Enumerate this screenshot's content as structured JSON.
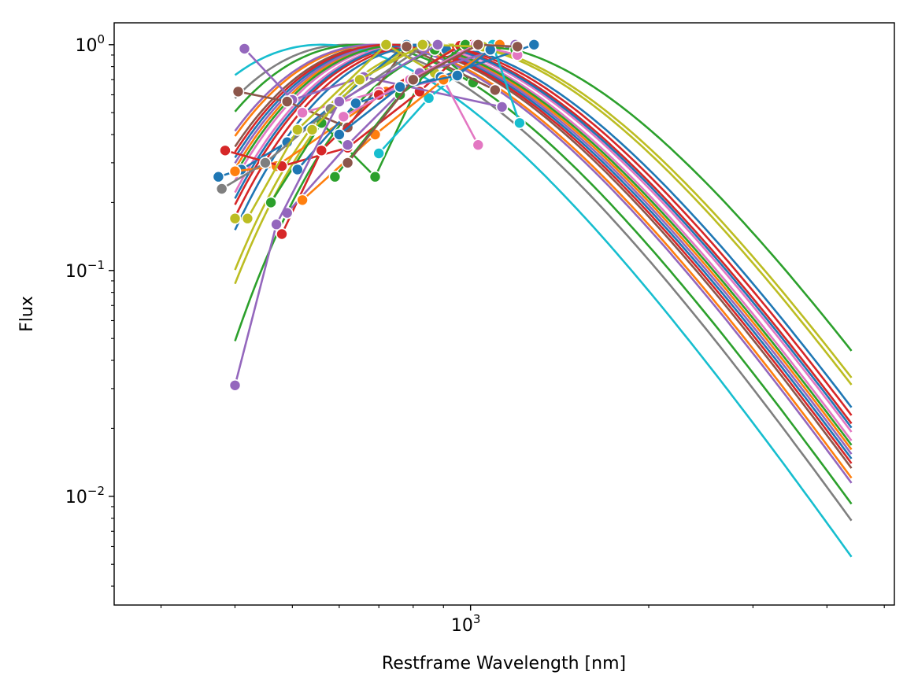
{
  "chart_data": {
    "type": "line",
    "xlabel": "Restframe Wavelength [nm]",
    "ylabel": "Flux",
    "x_scale": "log",
    "y_scale": "log",
    "xlim": [
      250,
      5200
    ],
    "ylim": [
      0.0033,
      1.25
    ],
    "grid": false,
    "legend": "none",
    "x_ticks": [
      {
        "value": 1000,
        "base": "10",
        "exp": "3"
      }
    ],
    "y_ticks": [
      {
        "value": 0.01,
        "base": "10",
        "exp": "−2"
      },
      {
        "value": 0.1,
        "base": "10",
        "exp": "−1"
      },
      {
        "value": 1,
        "base": "10",
        "exp": "0"
      }
    ],
    "palette": [
      "#1f77b4",
      "#ff7f0e",
      "#2ca02c",
      "#d62728",
      "#9467bd",
      "#8c564b",
      "#e377c2",
      "#7f7f7f",
      "#bcbd22",
      "#17becf"
    ],
    "curve_x_range": [
      400,
      4400
    ],
    "curves": [
      {
        "peak_nm": 740,
        "color": "#1f77b4"
      },
      {
        "peak_nm": 760,
        "color": "#ff7f0e"
      },
      {
        "peak_nm": 1020,
        "color": "#2ca02c"
      },
      {
        "peak_nm": 820,
        "color": "#d62728"
      },
      {
        "peak_nm": 750,
        "color": "#9467bd"
      },
      {
        "peak_nm": 720,
        "color": "#8c564b"
      },
      {
        "peak_nm": 780,
        "color": "#e377c2"
      },
      {
        "peak_nm": 620,
        "color": "#7f7f7f"
      },
      {
        "peak_nm": 920,
        "color": "#bcbd22"
      },
      {
        "peak_nm": 560,
        "color": "#17becf"
      },
      {
        "peak_nm": 860,
        "color": "#1f77b4"
      },
      {
        "peak_nm": 700,
        "color": "#ff7f0e"
      },
      {
        "peak_nm": 650,
        "color": "#2ca02c"
      },
      {
        "peak_nm": 840,
        "color": "#d62728"
      },
      {
        "peak_nm": 690,
        "color": "#9467bd"
      },
      {
        "peak_nm": 800,
        "color": "#e377c2"
      },
      {
        "peak_nm": 940,
        "color": "#bcbd22"
      },
      {
        "peak_nm": 770,
        "color": "#2ca02c"
      },
      {
        "peak_nm": 810,
        "color": "#1f77b4"
      },
      {
        "peak_nm": 730,
        "color": "#d62728"
      }
    ],
    "photometry_series": [
      {
        "color": "#1f77b4",
        "points": [
          [
            375,
            0.26
          ],
          [
            410,
            0.28
          ],
          [
            490,
            0.37
          ],
          [
            780,
            1.0
          ],
          [
            910,
            0.95
          ]
        ]
      },
      {
        "color": "#ff7f0e",
        "points": [
          [
            400,
            0.275
          ],
          [
            470,
            0.29
          ],
          [
            720,
            0.62
          ],
          [
            960,
            1.0
          ]
        ]
      },
      {
        "color": "#2ca02c",
        "points": [
          [
            460,
            0.2
          ],
          [
            560,
            0.45
          ],
          [
            690,
            0.26
          ],
          [
            870,
            0.95
          ],
          [
            1010,
            0.68
          ]
        ]
      },
      {
        "color": "#d62728",
        "points": [
          [
            385,
            0.34
          ],
          [
            480,
            0.29
          ],
          [
            620,
            0.35
          ],
          [
            820,
            0.62
          ],
          [
            1005,
            1.0
          ]
        ]
      },
      {
        "color": "#9467bd",
        "points": [
          [
            415,
            0.96
          ],
          [
            500,
            0.57
          ],
          [
            660,
            0.72
          ],
          [
            1130,
            0.53
          ]
        ]
      },
      {
        "color": "#8c564b",
        "points": [
          [
            405,
            0.62
          ],
          [
            490,
            0.56
          ],
          [
            620,
            0.43
          ],
          [
            780,
            0.98
          ],
          [
            1100,
            0.63
          ]
        ]
      },
      {
        "color": "#e377c2",
        "points": [
          [
            520,
            0.5
          ],
          [
            700,
            0.62
          ],
          [
            900,
            0.7
          ],
          [
            1030,
            0.36
          ]
        ]
      },
      {
        "color": "#7f7f7f",
        "points": [
          [
            380,
            0.23
          ],
          [
            450,
            0.3
          ],
          [
            580,
            0.52
          ],
          [
            840,
            1.0
          ]
        ]
      },
      {
        "color": "#bcbd22",
        "points": [
          [
            400,
            0.17
          ],
          [
            420,
            0.17
          ],
          [
            510,
            0.42
          ],
          [
            720,
            1.0
          ],
          [
            870,
            0.75
          ]
        ]
      },
      {
        "color": "#17becf",
        "points": [
          [
            700,
            0.33
          ],
          [
            850,
            0.58
          ],
          [
            1090,
            1.0
          ],
          [
            1210,
            0.45
          ]
        ]
      },
      {
        "color": "#1f77b4",
        "points": [
          [
            510,
            0.28
          ],
          [
            640,
            0.55
          ],
          [
            890,
            0.72
          ],
          [
            1280,
            1.0
          ]
        ]
      },
      {
        "color": "#d62728",
        "points": [
          [
            480,
            0.145
          ],
          [
            560,
            0.34
          ],
          [
            700,
            0.6
          ],
          [
            960,
            0.99
          ]
        ]
      },
      {
        "color": "#9467bd",
        "points": [
          [
            490,
            0.18
          ],
          [
            620,
            0.36
          ],
          [
            820,
            0.75
          ],
          [
            1190,
            1.0
          ]
        ]
      },
      {
        "color": "#ff7f0e",
        "points": [
          [
            520,
            0.205
          ],
          [
            690,
            0.4
          ],
          [
            900,
            0.7
          ],
          [
            1120,
            1.0
          ]
        ]
      },
      {
        "color": "#2ca02c",
        "points": [
          [
            590,
            0.26
          ],
          [
            760,
            0.6
          ],
          [
            980,
            1.0
          ],
          [
            1190,
            0.95
          ]
        ]
      },
      {
        "color": "#e377c2",
        "points": [
          [
            610,
            0.48
          ],
          [
            790,
            0.7
          ],
          [
            1020,
            1.0
          ],
          [
            1200,
            0.9
          ]
        ]
      },
      {
        "color": "#bcbd22",
        "points": [
          [
            540,
            0.42
          ],
          [
            650,
            0.7
          ],
          [
            830,
            1.0
          ],
          [
            1050,
            0.98
          ]
        ]
      },
      {
        "color": "#1f77b4",
        "points": [
          [
            600,
            0.4
          ],
          [
            760,
            0.65
          ],
          [
            950,
            0.73
          ],
          [
            1080,
            0.95
          ]
        ]
      },
      {
        "color": "#8c564b",
        "points": [
          [
            620,
            0.3
          ],
          [
            800,
            0.7
          ],
          [
            1030,
            1.0
          ],
          [
            1200,
            0.98
          ]
        ]
      },
      {
        "color": "#9467bd",
        "points": [
          [
            400,
            0.031
          ],
          [
            470,
            0.16
          ],
          [
            600,
            0.56
          ],
          [
            880,
            1.0
          ]
        ]
      }
    ]
  }
}
